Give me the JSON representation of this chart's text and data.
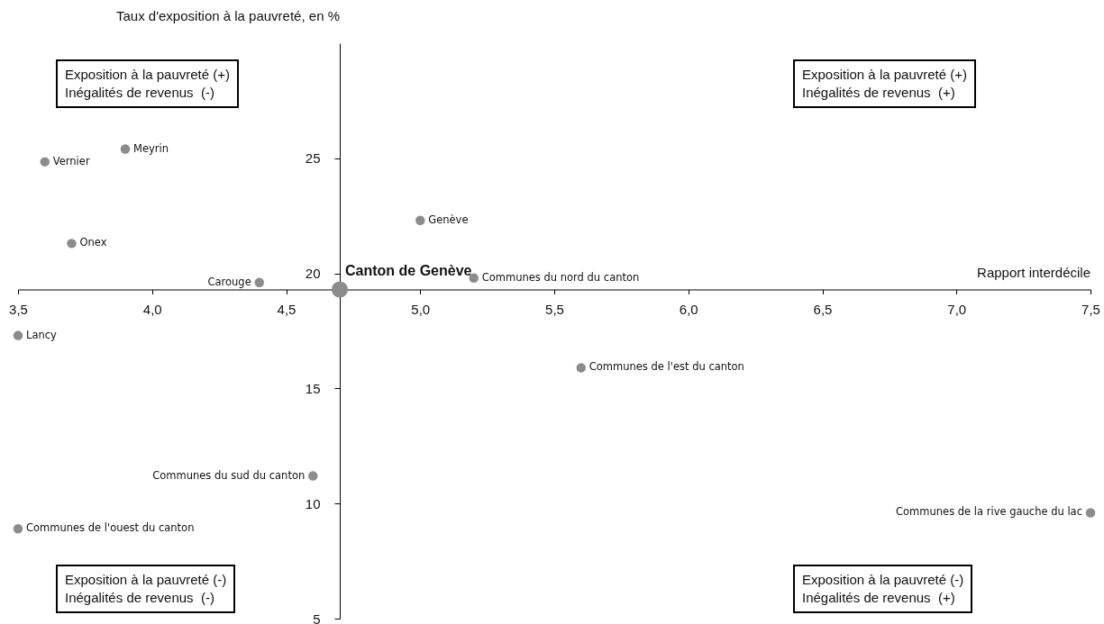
{
  "chart_data": {
    "type": "scatter",
    "xlabel": "Rapport interdécile",
    "ylabel": "Taux d'exposition à la pauvreté, en %",
    "xlim": [
      3.5,
      7.5
    ],
    "ylim": [
      5,
      30
    ],
    "xticks": [
      {
        "value": 3.5,
        "label": "3,5"
      },
      {
        "value": 4,
        "label": "4,0"
      },
      {
        "value": 4.5,
        "label": "4,5"
      },
      {
        "value": 5,
        "label": "5,0"
      },
      {
        "value": 5.5,
        "label": "5,5"
      },
      {
        "value": 6,
        "label": "6,0"
      },
      {
        "value": 6.5,
        "label": "6,5"
      },
      {
        "value": 7,
        "label": "7,0"
      },
      {
        "value": 7.5,
        "label": "7,5"
      }
    ],
    "yticks": [
      5,
      10,
      15,
      20,
      25
    ],
    "grid": false,
    "marker": "circle",
    "series": [
      {
        "color": "#8c8c8c",
        "x": [
          3.9,
          3.6,
          5.0,
          3.7,
          4.4,
          5.2,
          3.5,
          5.6,
          4.6,
          3.5,
          7.5
        ],
        "values": [
          25.4,
          24.85,
          22.3,
          21.3,
          19.6,
          19.8,
          17.3,
          15.9,
          11.2,
          8.9,
          9.6
        ]
      },
      {
        "name": "Canton de Genève",
        "color": "#8c8c8c",
        "x": [
          4.7
        ],
        "values": [
          19.3
        ]
      }
    ],
    "annotations": [
      "Exposition à la pauvreté (+)\nInégalités de revenus  (-)",
      "Exposition à la pauvreté (+)\nInégalités de revenus  (+)",
      "Exposition à la pauvreté (-)\nInégalités de revenus  (-)",
      "Exposition à la pauvreté (-)\nInégalités de revenus  (+)",
      {
        "text": "Meyrin",
        "x": 3.9,
        "y": 25.4
      },
      {
        "text": "Vernier",
        "x": 3.6,
        "y": 24.85
      },
      {
        "text": "Genève",
        "x": 5.0,
        "y": 22.3
      },
      {
        "text": "Onex",
        "x": 3.7,
        "y": 21.3
      },
      {
        "text": "Carouge",
        "x": 4.4,
        "y": 19.6
      },
      {
        "text": "Communes du nord du canton",
        "x": 5.2,
        "y": 19.8
      },
      {
        "text": "Lancy",
        "x": 3.5,
        "y": 17.3
      },
      {
        "text": "Communes de l'est du canton",
        "x": 5.6,
        "y": 15.9
      },
      {
        "text": "Communes du sud du canton",
        "x": 4.6,
        "y": 11.2
      },
      {
        "text": "Communes de l'ouest du canton",
        "x": 3.5,
        "y": 8.9
      },
      {
        "text": "Communes de la rive gauche du lac",
        "x": 7.5,
        "y": 9.6
      }
    ]
  }
}
